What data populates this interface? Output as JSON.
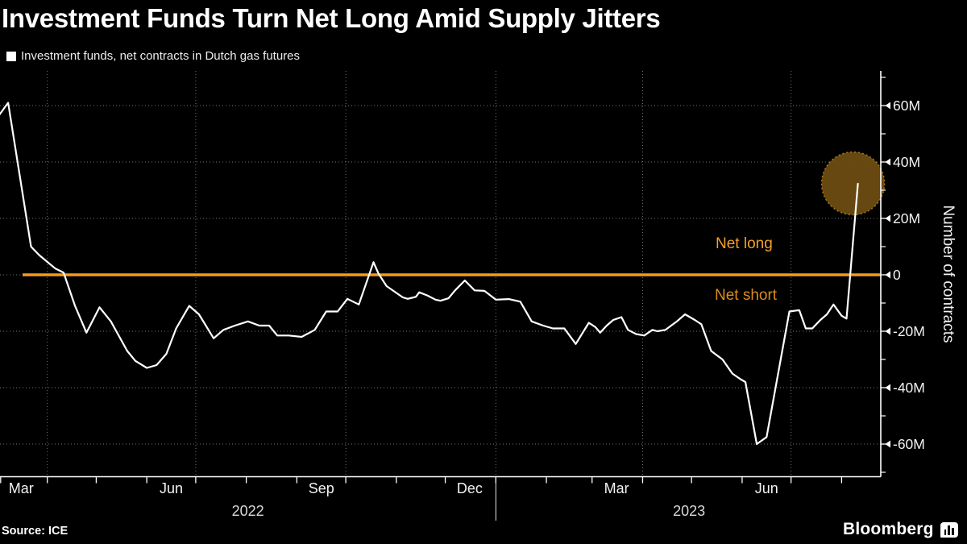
{
  "title": "Investment Funds Turn Net Long Amid Supply Jitters",
  "legend": {
    "label": "Investment funds, net contracts in Dutch gas futures",
    "marker_color": "#ffffff"
  },
  "annotations": {
    "net_long": "Net long",
    "net_short": "Net short"
  },
  "source": "Source: ICE",
  "logo": {
    "text": "Bloomberg",
    "icon": "bar-chart-icon"
  },
  "colors": {
    "background": "#000000",
    "line": "#ffffff",
    "zero_line": "#f79a1b",
    "net_long_text": "#f5a02b",
    "net_short_text": "#d98c1e",
    "grid": "#9a9a9a",
    "axis": "#e8e8e8",
    "tick_label": "#f2f2f2",
    "year_label": "#d9d9d9",
    "highlight_fill": "#6b4b12",
    "highlight_stroke": "#a87a20"
  },
  "y_axis": {
    "title": "Number of contracts",
    "ticks": [
      {
        "value": 60,
        "label": "60M"
      },
      {
        "value": 40,
        "label": "40M"
      },
      {
        "value": 20,
        "label": "20M"
      },
      {
        "value": 0,
        "label": "0"
      },
      {
        "value": -20,
        "label": "-20M"
      },
      {
        "value": -40,
        "label": "-40M"
      },
      {
        "value": -60,
        "label": "-60M"
      }
    ],
    "minor_tick_values": [
      70,
      50,
      30,
      10,
      -10,
      -30,
      -50,
      -70
    ],
    "range": [
      -72,
      72
    ]
  },
  "x_axis": {
    "range": [
      "2022-03-03",
      "2023-08-26"
    ],
    "tick_dates": [
      "2022-03-03",
      "2022-04-01",
      "2022-05-01",
      "2022-06-01",
      "2022-07-01",
      "2022-08-01",
      "2022-09-01",
      "2022-10-01",
      "2022-11-01",
      "2022-12-01",
      "2023-01-01",
      "2023-02-01",
      "2023-03-01",
      "2023-04-01",
      "2023-05-01",
      "2023-06-01",
      "2023-07-01",
      "2023-08-01"
    ],
    "gridline_dates": [
      "2022-04-01",
      "2022-07-01",
      "2022-10-01",
      "2023-01-01",
      "2023-04-01",
      "2023-07-01"
    ],
    "month_labels": [
      {
        "label": "Mar",
        "center_date": "2022-03-16"
      },
      {
        "label": "Jun",
        "center_date": "2022-06-16"
      },
      {
        "label": "Sep",
        "center_date": "2022-09-16"
      },
      {
        "label": "Dec",
        "center_date": "2022-12-16"
      },
      {
        "label": "Mar",
        "center_date": "2023-03-16"
      },
      {
        "label": "Jun",
        "center_date": "2023-06-16"
      }
    ],
    "year_separator_date": "2023-01-01",
    "year_labels": [
      "2022",
      "2023"
    ]
  },
  "chart_data": {
    "type": "line",
    "title": "Investment Funds Turn Net Long Amid Supply Jitters",
    "ylabel": "Number of contracts",
    "unit": "millions of contracts",
    "ylim": [
      -72,
      72
    ],
    "grid": "dotted",
    "zero_line_value": 0,
    "highlight": {
      "date": "2023-08-08",
      "value": 32.4,
      "radius_px": 39
    },
    "series": [
      {
        "name": "Investment funds, net contracts in Dutch gas futures",
        "color": "#ffffff",
        "points": [
          [
            "2022-03-01",
            55.5
          ],
          [
            "2022-03-08",
            61
          ],
          [
            "2022-03-22",
            10
          ],
          [
            "2022-03-27",
            7
          ],
          [
            "2022-04-06",
            2.2
          ],
          [
            "2022-04-11",
            0.8
          ],
          [
            "2022-04-18",
            -11
          ],
          [
            "2022-04-25",
            -20.5
          ],
          [
            "2022-05-03",
            -11.5
          ],
          [
            "2022-05-10",
            -16.5
          ],
          [
            "2022-05-20",
            -27
          ],
          [
            "2022-05-25",
            -30.5
          ],
          [
            "2022-06-01",
            -33
          ],
          [
            "2022-06-07",
            -32
          ],
          [
            "2022-06-13",
            -28
          ],
          [
            "2022-06-19",
            -19
          ],
          [
            "2022-06-27",
            -11
          ],
          [
            "2022-07-03",
            -14
          ],
          [
            "2022-07-12",
            -22.5
          ],
          [
            "2022-07-18",
            -19.5
          ],
          [
            "2022-07-25",
            -18
          ],
          [
            "2022-08-02",
            -16.5
          ],
          [
            "2022-08-09",
            -18
          ],
          [
            "2022-08-15",
            -18
          ],
          [
            "2022-08-20",
            -21.5
          ],
          [
            "2022-08-27",
            -21.5
          ],
          [
            "2022-09-04",
            -22
          ],
          [
            "2022-09-12",
            -19.5
          ],
          [
            "2022-09-19",
            -13
          ],
          [
            "2022-09-26",
            -13
          ],
          [
            "2022-10-02",
            -8.5
          ],
          [
            "2022-10-09",
            -10.5
          ],
          [
            "2022-10-18",
            4.5
          ],
          [
            "2022-10-21",
            0.5
          ],
          [
            "2022-10-26",
            -4
          ],
          [
            "2022-10-31",
            -6
          ],
          [
            "2022-11-05",
            -8
          ],
          [
            "2022-11-08",
            -8.5
          ],
          [
            "2022-11-13",
            -7.8
          ],
          [
            "2022-11-15",
            -6.2
          ],
          [
            "2022-11-20",
            -7.3
          ],
          [
            "2022-11-25",
            -8.8
          ],
          [
            "2022-11-28",
            -9.2
          ],
          [
            "2022-12-03",
            -8.3
          ],
          [
            "2022-12-07",
            -5.5
          ],
          [
            "2022-12-13",
            -2
          ],
          [
            "2022-12-19",
            -5.5
          ],
          [
            "2022-12-25",
            -5.7
          ],
          [
            "2023-01-01",
            -8.8
          ],
          [
            "2023-01-09",
            -8.6
          ],
          [
            "2023-01-16",
            -9.5
          ],
          [
            "2023-01-23",
            -16.5
          ],
          [
            "2023-01-30",
            -18
          ],
          [
            "2023-02-05",
            -19
          ],
          [
            "2023-02-12",
            -19
          ],
          [
            "2023-02-19",
            -24.5
          ],
          [
            "2023-02-27",
            -17
          ],
          [
            "2023-03-03",
            -18.5
          ],
          [
            "2023-03-06",
            -20.5
          ],
          [
            "2023-03-10",
            -18
          ],
          [
            "2023-03-14",
            -16
          ],
          [
            "2023-03-19",
            -15
          ],
          [
            "2023-03-23",
            -19.5
          ],
          [
            "2023-03-28",
            -21
          ],
          [
            "2023-04-02",
            -21.5
          ],
          [
            "2023-04-07",
            -19.5
          ],
          [
            "2023-04-10",
            -20
          ],
          [
            "2023-04-15",
            -19.5
          ],
          [
            "2023-04-22",
            -16.5
          ],
          [
            "2023-04-27",
            -14
          ],
          [
            "2023-05-03",
            -16
          ],
          [
            "2023-05-07",
            -17.5
          ],
          [
            "2023-05-13",
            -27
          ],
          [
            "2023-05-20",
            -30
          ],
          [
            "2023-05-26",
            -35
          ],
          [
            "2023-05-31",
            -37
          ],
          [
            "2023-06-03",
            -38
          ],
          [
            "2023-06-10",
            -60
          ],
          [
            "2023-06-16",
            -57.5
          ],
          [
            "2023-06-30",
            -13
          ],
          [
            "2023-07-06",
            -12.5
          ],
          [
            "2023-07-10",
            -19
          ],
          [
            "2023-07-14",
            -19
          ],
          [
            "2023-07-19",
            -16
          ],
          [
            "2023-07-23",
            -14
          ],
          [
            "2023-07-27",
            -10.5
          ],
          [
            "2023-08-01",
            -14.5
          ],
          [
            "2023-08-04",
            -15.5
          ],
          [
            "2023-08-11",
            32.3
          ]
        ]
      }
    ]
  }
}
